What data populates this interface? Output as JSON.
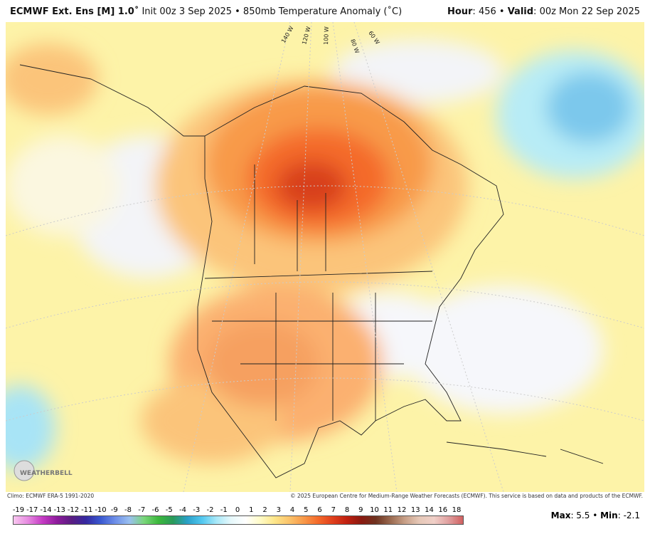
{
  "header": {
    "title": "ECMWF Ext. Ens [M] 1.0˚",
    "subtitle": "Init 00z 3 Sep 2025 • 850mb Temperature Anomaly (˚C)",
    "hour_label": "Hour",
    "hour": "456",
    "valid_label": "Valid",
    "valid": "00z Mon 22 Sep 2025"
  },
  "map": {
    "meridians": [
      "140 W",
      "120 W",
      "100 W",
      "80 W",
      "60 W"
    ],
    "logo": "WEATHERBELL"
  },
  "footer": {
    "climo": "Climo: ECMWF ERA-5 1991-2020",
    "copyright": "© 2025 European Centre for Medium-Range Weather Forecasts (ECMWF). This service is based on data and products of the ECMWF.",
    "colorbar": [
      -19,
      -17,
      -14,
      -13,
      -12,
      -11,
      -10,
      -9,
      -8,
      -7,
      -6,
      -5,
      -4,
      -3,
      -2,
      -1,
      0,
      1,
      2,
      3,
      4,
      5,
      6,
      7,
      8,
      9,
      10,
      11,
      12,
      13,
      14,
      16,
      18
    ],
    "max_label": "Max",
    "max": "5.5",
    "min_label": "Min",
    "min": "-2.1"
  }
}
